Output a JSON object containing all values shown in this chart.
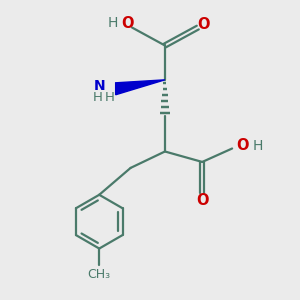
{
  "bg_color": "#ebebeb",
  "bond_color": "#4a7a6a",
  "o_color": "#cc0000",
  "n_color": "#0000cc",
  "line_width": 1.6,
  "figsize": [
    3.0,
    3.0
  ],
  "dpi": 100,
  "xlim": [
    0,
    10
  ],
  "ylim": [
    0,
    10
  ],
  "font_size": 9.5
}
